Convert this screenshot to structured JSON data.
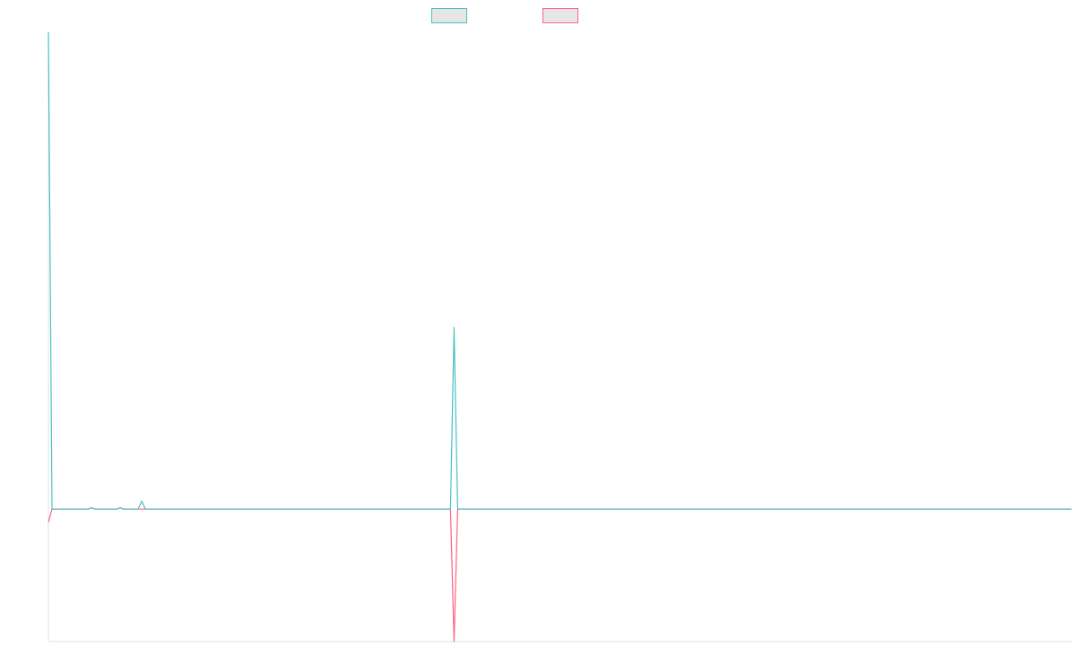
{
  "chart_data": {
    "type": "line",
    "title": "",
    "xlabel": "",
    "ylabel": "",
    "grid": false,
    "legend_position": "top-center",
    "x": [
      0,
      1,
      2,
      3,
      4,
      5,
      6,
      7,
      8,
      9,
      10,
      11,
      12,
      13,
      14,
      15,
      16,
      17,
      18,
      19,
      20,
      21,
      22,
      23,
      24,
      25,
      26,
      27,
      28,
      29,
      30,
      31,
      32,
      33,
      34,
      35,
      36,
      37,
      38,
      39,
      40,
      41,
      42,
      43,
      44,
      45,
      46,
      47,
      48,
      49,
      50,
      51,
      52,
      53,
      54,
      55,
      56,
      57,
      58,
      59,
      60,
      61,
      62,
      63,
      64,
      65,
      66,
      67,
      68,
      69,
      70,
      71,
      72,
      73,
      74,
      75,
      76,
      77,
      78,
      79,
      80,
      81,
      82,
      83,
      84,
      85,
      86,
      87,
      88,
      89,
      90,
      91,
      92,
      93,
      94,
      95,
      96,
      97,
      98,
      99,
      100,
      101,
      102,
      103,
      104,
      105,
      106,
      107,
      108,
      109,
      110,
      111,
      112,
      113,
      114,
      115,
      116,
      117,
      118,
      119,
      120,
      121,
      122,
      123,
      124,
      125,
      126,
      127,
      128,
      129,
      130,
      131,
      132,
      133,
      134,
      135,
      136,
      137,
      138,
      139,
      140,
      141,
      142,
      143,
      144,
      145,
      146,
      147,
      148,
      149,
      150,
      151,
      152,
      153,
      154,
      155,
      156,
      157,
      158,
      159,
      160,
      161,
      162,
      163,
      164,
      165,
      166,
      167,
      168,
      169,
      170,
      171,
      172,
      173,
      174,
      175,
      176,
      177,
      178,
      179,
      180,
      181,
      182,
      183,
      184,
      185,
      186,
      187,
      188,
      189,
      190,
      191,
      192,
      193,
      194,
      195,
      196,
      197,
      198,
      199,
      200,
      201,
      202,
      203,
      204,
      205,
      206,
      207,
      208,
      209,
      210,
      211,
      212,
      213,
      214,
      215,
      216,
      217,
      218,
      219,
      220,
      221,
      222,
      223,
      224,
      225,
      226,
      227,
      228,
      229,
      230,
      231,
      232,
      233,
      234,
      235,
      236,
      237,
      238,
      239,
      240,
      241,
      242,
      243,
      244,
      245,
      246,
      247,
      248,
      249,
      250,
      251,
      252,
      253,
      254,
      255,
      256,
      257,
      258,
      259,
      260,
      261,
      262,
      263,
      264,
      265,
      266,
      267,
      268,
      269,
      270,
      271,
      272,
      273,
      274,
      275,
      276,
      277,
      278,
      279,
      280,
      281,
      282,
      283,
      284,
      285
    ],
    "ylim": [
      -1.0,
      3.6
    ],
    "series": [
      {
        "color": "#4bc0c0",
        "legend_fill": "#e6e6e6",
        "sparse": true,
        "default": 0,
        "points": [
          [
            0,
            3.6
          ],
          [
            1,
            0.0
          ],
          [
            11,
            0.0
          ],
          [
            12,
            0.01
          ],
          [
            13,
            0.0
          ],
          [
            19,
            0.0
          ],
          [
            20,
            0.01
          ],
          [
            21,
            0.0
          ],
          [
            25,
            0.0
          ],
          [
            26,
            0.06
          ],
          [
            27,
            0.0
          ],
          [
            112,
            0.0
          ],
          [
            113,
            1.37
          ],
          [
            114,
            0.0
          ]
        ]
      },
      {
        "color": "#ff6384",
        "legend_fill": "#e6e6e6",
        "sparse": true,
        "default": 0,
        "points": [
          [
            0,
            -0.1
          ],
          [
            1,
            0.0
          ],
          [
            11,
            0.0
          ],
          [
            12,
            0.01
          ],
          [
            13,
            0.0
          ],
          [
            19,
            0.0
          ],
          [
            20,
            0.01
          ],
          [
            21,
            0.0
          ],
          [
            112,
            0.0
          ],
          [
            113,
            -1.0
          ],
          [
            114,
            0.0
          ]
        ]
      }
    ]
  }
}
